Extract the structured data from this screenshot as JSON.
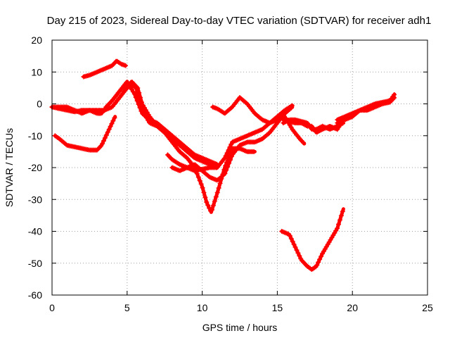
{
  "chart_data": {
    "type": "scatter",
    "title": "Day 215 of 2023, Sidereal Day-to-day VTEC variation (SDTVAR) for receiver adh1",
    "xlabel": "GPS time / hours",
    "ylabel": "SDTVAR / TECUs",
    "xlim": [
      0,
      25
    ],
    "ylim": [
      -60,
      20
    ],
    "xticks": [
      0,
      5,
      10,
      15,
      20,
      25
    ],
    "yticks": [
      -60,
      -50,
      -40,
      -30,
      -20,
      -10,
      0,
      10,
      20
    ],
    "grid": true,
    "marker": "plus",
    "color": "#ff0000",
    "series": [
      {
        "x": [
          0.0,
          0.5,
          1.0,
          1.5,
          2.0,
          2.5,
          3.0,
          3.5,
          4.0,
          4.5,
          5.0,
          5.3,
          5.6,
          6.0,
          6.5,
          7.0,
          7.5,
          8.0,
          8.5,
          9.0,
          9.5,
          10.0,
          10.5,
          11.0
        ],
        "y": [
          -1,
          -1.5,
          -2,
          -2.5,
          -2,
          -2,
          -2,
          -2,
          -1,
          2,
          5,
          6,
          5,
          -2,
          -6,
          -7,
          -9,
          -11,
          -13,
          -15,
          -17,
          -18,
          -19,
          -20
        ]
      },
      {
        "x": [
          0.0,
          0.5,
          1.0,
          1.5,
          2.0,
          2.5,
          3.0,
          3.3,
          3.6,
          4.0,
          4.5,
          5.0,
          5.5,
          6.0,
          6.5,
          7.0,
          7.5,
          8.0,
          8.5,
          9.0,
          9.5,
          10.0,
          10.5,
          11.0
        ],
        "y": [
          -1,
          -1,
          -1,
          -2,
          -3,
          -2,
          -3,
          -3,
          -1,
          1,
          4,
          7,
          3,
          -3,
          -5,
          -6,
          -8,
          -10,
          -12,
          -14,
          -16,
          -17,
          -18,
          -19
        ]
      },
      {
        "x": [
          0.2,
          0.5,
          1.0,
          1.5,
          2.0,
          2.5,
          3.0,
          3.3,
          3.7,
          4.2
        ],
        "y": [
          -10,
          -11,
          -13,
          -13.5,
          -14,
          -14.5,
          -14.5,
          -13,
          -9,
          -4
        ]
      },
      {
        "x": [
          2.1,
          2.5,
          3.0,
          3.5,
          4.0,
          4.3,
          4.6,
          4.9
        ],
        "y": [
          8.5,
          9,
          10,
          11,
          12,
          13.5,
          12.5,
          12
        ]
      },
      {
        "x": [
          4.8,
          5.3,
          5.7,
          6.0,
          6.5,
          7.0,
          7.5,
          8.0,
          8.5,
          9.0,
          9.5,
          10.0,
          10.3,
          10.6,
          11.0,
          11.5,
          12.0,
          12.5,
          13.0,
          13.5
        ],
        "y": [
          4,
          7,
          5,
          0,
          -4,
          -7,
          -9,
          -12,
          -15,
          -17,
          -20,
          -26,
          -31,
          -34,
          -28,
          -20,
          -14,
          -14,
          -15,
          -15
        ]
      },
      {
        "x": [
          7.7,
          8.0,
          8.5,
          9.0,
          9.5,
          10.0,
          10.5,
          11.0,
          11.5,
          12.0,
          12.5,
          13.0,
          13.5,
          14.0,
          14.5,
          15.0,
          15.5,
          16.0
        ],
        "y": [
          -16,
          -17.5,
          -19,
          -20,
          -21,
          -20.5,
          -20,
          -20,
          -17,
          -12,
          -11,
          -10,
          -9,
          -8,
          -6,
          -4,
          -2,
          -0.5
        ]
      },
      {
        "x": [
          8.0,
          8.5,
          9.0,
          9.5,
          10.0,
          10.5,
          11.0,
          11.5,
          12.0,
          12.5,
          13.0,
          13.5,
          14.0,
          14.5,
          15.0,
          15.5,
          16.0
        ],
        "y": [
          -20,
          -21,
          -20,
          -19,
          -21,
          -23,
          -24,
          -22,
          -16,
          -13,
          -12,
          -12,
          -11,
          -9,
          -6,
          -3,
          -1
        ]
      },
      {
        "x": [
          10.7,
          11.0,
          11.5,
          12.0,
          12.5,
          13.0,
          13.5,
          14.0,
          14.5,
          15.0,
          15.5,
          16.0,
          16.5,
          16.8
        ],
        "y": [
          -1,
          -1.5,
          -3,
          -1,
          2,
          0,
          -3,
          -5,
          -6,
          -5,
          -4,
          -8,
          -11,
          -12.5
        ]
      },
      {
        "x": [
          15.4,
          15.8,
          16.2,
          16.6,
          17.0,
          17.3,
          17.6,
          18.0,
          18.5,
          19.0,
          19.4
        ],
        "y": [
          -6,
          -5,
          -5,
          -5.5,
          -6,
          -8,
          -8,
          -7,
          -8,
          -7,
          -6
        ]
      },
      {
        "x": [
          15.4,
          15.8,
          16.2,
          16.6,
          17.0,
          17.3,
          17.6,
          18.0,
          18.5,
          19.0,
          19.4
        ],
        "y": [
          -5,
          -5.5,
          -6,
          -6,
          -7,
          -7,
          -9,
          -8,
          -7,
          -8,
          -5
        ]
      },
      {
        "x": [
          19.0,
          19.5,
          20.0,
          20.5,
          21.0,
          21.5,
          22.0,
          22.5,
          22.8
        ],
        "y": [
          -6,
          -5,
          -4,
          -2,
          -1,
          0,
          0.5,
          1,
          3
        ]
      },
      {
        "x": [
          19.0,
          19.5,
          20.0,
          20.5,
          21.0,
          21.5,
          22.0,
          22.5,
          22.8
        ],
        "y": [
          -5,
          -4,
          -3,
          -2,
          -2,
          -1,
          0,
          0.5,
          2
        ]
      },
      {
        "x": [
          15.3,
          15.8,
          16.2,
          16.6,
          17.0,
          17.3,
          17.6,
          18.0,
          18.5,
          19.0,
          19.4
        ],
        "y": [
          -40,
          -41,
          -45,
          -49,
          -51,
          -52,
          -51,
          -47,
          -43,
          -39,
          -33
        ]
      }
    ]
  }
}
